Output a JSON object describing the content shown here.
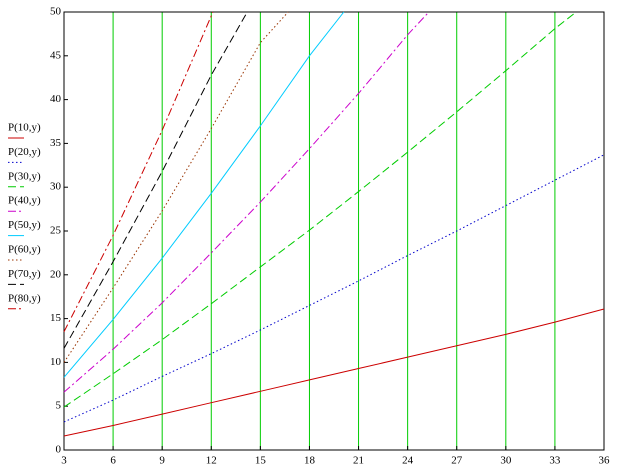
{
  "chart_data": {
    "type": "line",
    "xlim": [
      3,
      36
    ],
    "ylim": [
      0,
      50
    ],
    "xticks": [
      3,
      6,
      9,
      12,
      15,
      18,
      21,
      24,
      27,
      30,
      33,
      36
    ],
    "yticks": [
      0,
      5,
      10,
      15,
      20,
      25,
      30,
      35,
      40,
      45,
      50
    ],
    "grid": "x",
    "grid_color": "#00cc00",
    "series": [
      {
        "name": "P(10,y)",
        "color": "#cc0000",
        "dash": "solid",
        "x": [
          3,
          6,
          9,
          12,
          15,
          18,
          21,
          24,
          27,
          30,
          33,
          36
        ],
        "values": [
          1.6,
          2.8,
          4.1,
          5.4,
          6.7,
          8.0,
          9.3,
          10.6,
          11.9,
          13.2,
          14.6,
          16.1
        ]
      },
      {
        "name": "P(20,y)",
        "color": "#0000cc",
        "dash": "dotted",
        "x": [
          3,
          6,
          9,
          12,
          15,
          18,
          21,
          24,
          27,
          30,
          33,
          36
        ],
        "values": [
          3.2,
          5.7,
          8.4,
          11.0,
          13.7,
          16.5,
          19.3,
          22.2,
          25.0,
          27.9,
          30.8,
          33.7
        ]
      },
      {
        "name": "P(30,y)",
        "color": "#00cc00",
        "dash": "dashed",
        "x": [
          3,
          6,
          9,
          12,
          15,
          18,
          21,
          24,
          27,
          30,
          33,
          34.3
        ],
        "values": [
          4.9,
          8.7,
          12.6,
          16.7,
          20.9,
          25.1,
          29.5,
          34.0,
          38.6,
          43.3,
          48.1,
          50
        ]
      },
      {
        "name": "P(40,y)",
        "color": "#cc00cc",
        "dash": "dashdot",
        "x": [
          3,
          6,
          9,
          12,
          15,
          18,
          21,
          24,
          25.3
        ],
        "values": [
          6.6,
          11.5,
          16.8,
          22.5,
          28.3,
          34.4,
          40.7,
          47.4,
          50
        ]
      },
      {
        "name": "P(50,y)",
        "color": "#00ccff",
        "dash": "solid",
        "x": [
          3,
          6,
          9,
          12,
          15,
          18,
          20.1
        ],
        "values": [
          8.3,
          14.9,
          21.9,
          29.3,
          37.0,
          45.0,
          50
        ]
      },
      {
        "name": "P(60,y)",
        "color": "#993300",
        "dash": "dotted",
        "x": [
          3,
          6,
          9,
          12,
          15,
          16.7
        ],
        "values": [
          10.0,
          18.5,
          27.3,
          36.7,
          46.5,
          50
        ]
      },
      {
        "name": "P(70,y)",
        "color": "#000000",
        "dash": "dashed",
        "x": [
          3,
          6,
          9,
          12,
          14.2
        ],
        "values": [
          11.6,
          21.5,
          31.8,
          42.8,
          50
        ]
      },
      {
        "name": "P(80,y)",
        "color": "#cc0000",
        "dash": "dashdot",
        "x": [
          3,
          6,
          9,
          12.1
        ],
        "values": [
          13.5,
          24.5,
          36.5,
          50
        ]
      }
    ]
  }
}
